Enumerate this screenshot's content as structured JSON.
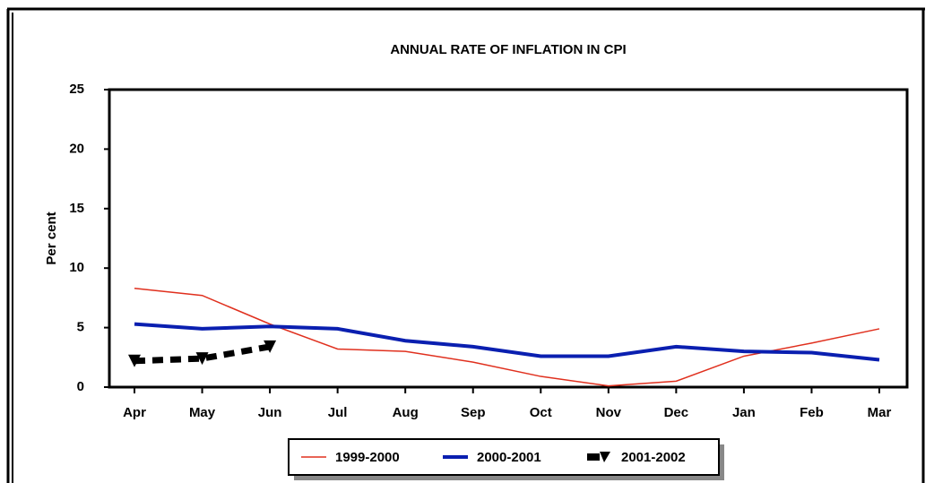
{
  "chart_data": {
    "type": "line",
    "title": "ANNUAL RATE OF INFLATION IN CPI",
    "y_label": "Per cent",
    "categories": [
      "Apr",
      "May",
      "Jun",
      "Jul",
      "Aug",
      "Sep",
      "Oct",
      "Nov",
      "Dec",
      "Jan",
      "Feb",
      "Mar"
    ],
    "series": [
      {
        "name": "1999-2000",
        "color": "#e0301e",
        "values": [
          8.3,
          7.7,
          5.3,
          3.2,
          3.0,
          2.1,
          0.9,
          0.1,
          0.5,
          2.6,
          3.7,
          4.9
        ]
      },
      {
        "name": "2000-2001",
        "color": "#0a1fb0",
        "values": [
          5.3,
          4.9,
          5.1,
          4.9,
          3.9,
          3.4,
          2.6,
          2.6,
          3.4,
          3.0,
          2.9,
          2.3
        ]
      },
      {
        "name": "2001-2002",
        "color": "#000000",
        "values": [
          2.2,
          2.4,
          3.4,
          null,
          null,
          null,
          null,
          null,
          null,
          null,
          null,
          null
        ]
      }
    ],
    "ylim": [
      0,
      25
    ],
    "yticks": [
      0,
      5,
      10,
      15,
      20,
      25
    ],
    "grid": false,
    "legend": "bottom"
  }
}
